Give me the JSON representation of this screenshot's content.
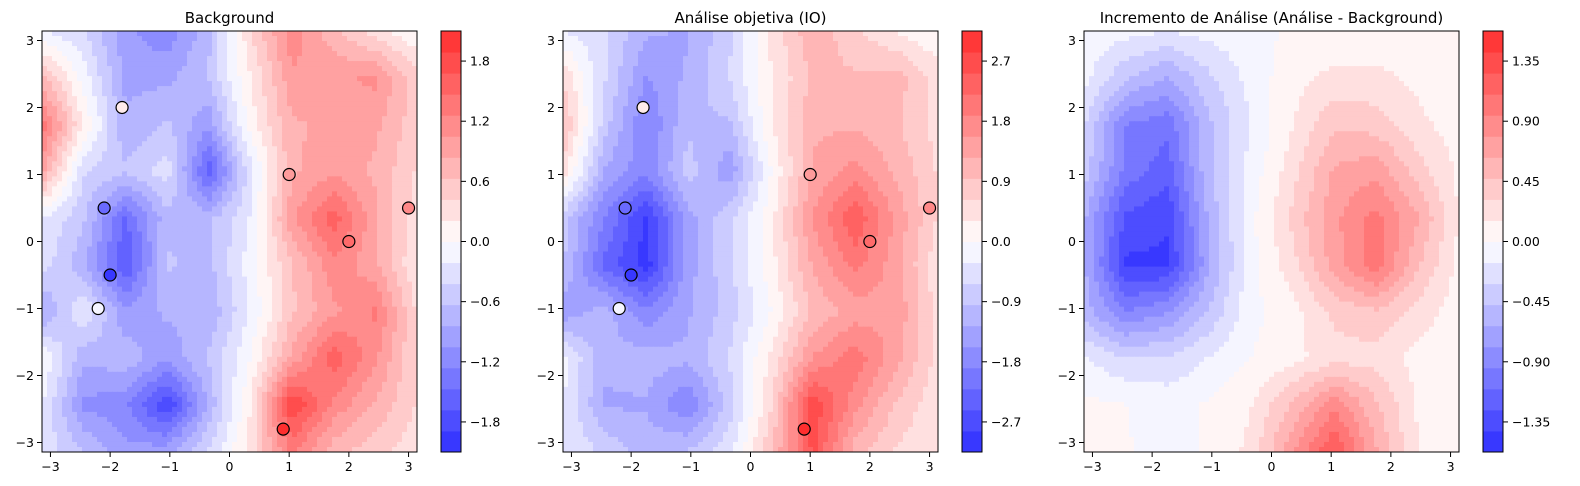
{
  "chart_data": [
    {
      "type": "heatmap",
      "title": "Background",
      "xlabel": "",
      "ylabel": "",
      "xlim": [
        -3.14159,
        3.14159
      ],
      "ylim": [
        -3.14159,
        3.14159
      ],
      "x_ticks": [
        -3,
        -2,
        -1,
        0,
        1,
        2,
        3
      ],
      "y_ticks": [
        -3,
        -2,
        -1,
        0,
        1,
        2,
        3
      ],
      "x_tick_labels": [
        "−3",
        "−2",
        "−1",
        "0",
        "1",
        "2",
        "3"
      ],
      "y_tick_labels": [
        "−3",
        "−2",
        "−1",
        "0",
        "1",
        "2",
        "3"
      ],
      "colormap": "bwr",
      "color_range": [
        -2.1,
        2.1
      ],
      "levels": 20,
      "colorbar_ticks": [
        -1.8,
        -1.2,
        -0.6,
        0.0,
        0.6,
        1.2,
        1.8
      ],
      "colorbar_tick_labels": [
        "−1.8",
        "−1.2",
        "−0.6",
        "0.0",
        "0.6",
        "1.2",
        "1.8"
      ],
      "grid": {
        "x": [
          -3.14,
          -2.44,
          -1.75,
          -1.05,
          -0.35,
          0.35,
          1.05,
          1.75,
          2.44,
          3.14
        ],
        "y": [
          3.14,
          2.44,
          1.75,
          1.05,
          0.35,
          -0.35,
          -1.05,
          -1.75,
          -2.44,
          -3.14
        ],
        "z": [
          [
            -0.2,
            -0.4,
            -1.0,
            -1.2,
            -0.7,
            0.4,
            1.2,
            0.7,
            0.3,
            0.0
          ],
          [
            0.7,
            -0.1,
            -0.9,
            -0.9,
            -0.6,
            0.2,
            1.0,
            1.0,
            1.1,
            0.5
          ],
          [
            1.4,
            0.2,
            -0.8,
            -0.6,
            -1.0,
            0.1,
            0.8,
            0.9,
            0.9,
            0.5
          ],
          [
            0.9,
            -0.4,
            -0.6,
            -0.3,
            -1.6,
            -0.3,
            0.8,
            1.0,
            0.8,
            0.4
          ],
          [
            -0.2,
            -0.6,
            -1.5,
            -0.7,
            -0.7,
            -0.2,
            1.0,
            1.6,
            0.9,
            0.3
          ],
          [
            -0.3,
            -0.8,
            -1.7,
            -0.6,
            -0.7,
            -0.1,
            0.6,
            1.2,
            0.9,
            0.2
          ],
          [
            -0.9,
            -0.2,
            -1.0,
            -0.8,
            -0.8,
            -0.2,
            0.6,
            1.0,
            1.3,
            0.4
          ],
          [
            0.0,
            -0.8,
            -0.7,
            -1.0,
            -0.6,
            0.0,
            0.9,
            1.6,
            1.1,
            0.4
          ],
          [
            -0.2,
            -1.1,
            -1.2,
            -1.9,
            -0.8,
            0.2,
            1.9,
            1.2,
            0.8,
            0.4
          ],
          [
            -0.3,
            -0.6,
            -1.0,
            -0.9,
            -0.4,
            0.3,
            1.3,
            0.7,
            0.5,
            0.3
          ]
        ]
      },
      "observations": [
        {
          "x": -1.8,
          "y": 2.0,
          "value": 0.2
        },
        {
          "x": 1.0,
          "y": 1.0,
          "value": 1.0
        },
        {
          "x": -2.1,
          "y": 0.5,
          "value": -1.5
        },
        {
          "x": 3.0,
          "y": 0.5,
          "value": 1.2
        },
        {
          "x": 2.0,
          "y": 0.0,
          "value": 1.5
        },
        {
          "x": -2.0,
          "y": -0.5,
          "value": -2.0
        },
        {
          "x": -2.2,
          "y": -1.0,
          "value": -0.1
        },
        {
          "x": 0.9,
          "y": -2.8,
          "value": 2.3
        }
      ]
    },
    {
      "type": "heatmap",
      "title": "Análise objetiva (IO)",
      "xlabel": "",
      "ylabel": "",
      "xlim": [
        -3.14159,
        3.14159
      ],
      "ylim": [
        -3.14159,
        3.14159
      ],
      "x_ticks": [
        -3,
        -2,
        -1,
        0,
        1,
        2,
        3
      ],
      "y_ticks": [
        -3,
        -2,
        -1,
        0,
        1,
        2,
        3
      ],
      "x_tick_labels": [
        "−3",
        "−2",
        "−1",
        "0",
        "1",
        "2",
        "3"
      ],
      "y_tick_labels": [
        "−3",
        "−2",
        "−1",
        "0",
        "1",
        "2",
        "3"
      ],
      "colormap": "bwr",
      "color_range": [
        -3.15,
        3.15
      ],
      "levels": 20,
      "colorbar_ticks": [
        -2.7,
        -1.8,
        -0.9,
        0.0,
        0.9,
        1.8,
        2.7
      ],
      "colorbar_tick_labels": [
        "−2.7",
        "−1.8",
        "−0.9",
        "0.0",
        "0.9",
        "1.8",
        "2.7"
      ],
      "grid": {
        "x": [
          -3.14,
          -2.44,
          -1.75,
          -1.05,
          -0.35,
          0.35,
          1.05,
          1.75,
          2.44,
          3.14
        ],
        "y": [
          3.14,
          2.44,
          1.75,
          1.05,
          0.35,
          -0.35,
          -1.05,
          -1.75,
          -2.44,
          -3.14
        ],
        "z": [
          [
            -0.3,
            -0.6,
            -1.2,
            -1.3,
            -0.7,
            0.4,
            1.2,
            0.7,
            0.3,
            0.0
          ],
          [
            0.6,
            -0.6,
            -1.6,
            -1.2,
            -0.6,
            0.3,
            1.0,
            1.0,
            1.1,
            0.5
          ],
          [
            1.0,
            -0.8,
            -1.9,
            -1.0,
            -1.0,
            0.3,
            1.2,
            1.2,
            1.0,
            0.5
          ],
          [
            0.5,
            -1.3,
            -1.8,
            -0.8,
            -1.5,
            0.0,
            1.3,
            1.7,
            1.2,
            0.6
          ],
          [
            -0.8,
            -1.9,
            -2.9,
            -1.4,
            -0.7,
            0.2,
            1.6,
            2.5,
            1.5,
            0.6
          ],
          [
            -0.9,
            -2.3,
            -3.0,
            -1.4,
            -0.7,
            0.2,
            1.3,
            2.0,
            1.4,
            0.4
          ],
          [
            -1.5,
            -1.1,
            -1.8,
            -1.3,
            -0.8,
            0.0,
            1.0,
            1.4,
            1.5,
            0.5
          ],
          [
            -0.2,
            -1.2,
            -1.1,
            -1.2,
            -0.6,
            0.4,
            1.6,
            2.1,
            1.4,
            0.5
          ],
          [
            -0.3,
            -1.3,
            -1.3,
            -1.9,
            -0.8,
            0.6,
            2.8,
            1.7,
            0.9,
            0.4
          ],
          [
            -0.3,
            -0.7,
            -1.1,
            -0.9,
            -0.4,
            0.9,
            2.6,
            1.1,
            0.6,
            0.3
          ]
        ]
      },
      "observations": [
        {
          "x": -1.8,
          "y": 2.0,
          "value": 0.2
        },
        {
          "x": 1.0,
          "y": 1.0,
          "value": 1.0
        },
        {
          "x": -2.1,
          "y": 0.5,
          "value": -1.5
        },
        {
          "x": 3.0,
          "y": 0.5,
          "value": 1.2
        },
        {
          "x": 2.0,
          "y": 0.0,
          "value": 1.5
        },
        {
          "x": -2.0,
          "y": -0.5,
          "value": -2.0
        },
        {
          "x": -2.2,
          "y": -1.0,
          "value": -0.1
        },
        {
          "x": 0.9,
          "y": -2.8,
          "value": 2.3
        }
      ]
    },
    {
      "type": "heatmap",
      "title": "Incremento de Análise (Análise - Background)",
      "xlabel": "",
      "ylabel": "",
      "xlim": [
        -3.14159,
        3.14159
      ],
      "ylim": [
        -3.14159,
        3.14159
      ],
      "x_ticks": [
        -3,
        -2,
        -1,
        0,
        1,
        2,
        3
      ],
      "y_ticks": [
        -3,
        -2,
        -1,
        0,
        1,
        2,
        3
      ],
      "x_tick_labels": [
        "−3",
        "−2",
        "−1",
        "0",
        "1",
        "2",
        "3"
      ],
      "y_tick_labels": [
        "−3",
        "−2",
        "−1",
        "0",
        "1",
        "2",
        "3"
      ],
      "colormap": "bwr",
      "color_range": [
        -1.575,
        1.575
      ],
      "levels": 20,
      "colorbar_ticks": [
        -1.35,
        -0.9,
        -0.45,
        0.0,
        0.45,
        0.9,
        1.35
      ],
      "colorbar_tick_labels": [
        "−1.35",
        "−0.90",
        "−0.45",
        "0.00",
        "0.45",
        "0.90",
        "1.35"
      ],
      "grid": {
        "x": [
          -3.14,
          -2.44,
          -1.75,
          -1.05,
          -0.35,
          0.35,
          1.05,
          1.75,
          2.44,
          3.14
        ],
        "y": [
          3.14,
          2.44,
          1.75,
          1.05,
          0.35,
          -0.35,
          -1.05,
          -1.75,
          -2.44,
          -3.14
        ],
        "z": [
          [
            -0.05,
            -0.1,
            -0.15,
            -0.1,
            -0.05,
            0.02,
            0.05,
            0.05,
            0.03,
            0.02
          ],
          [
            -0.1,
            -0.45,
            -0.65,
            -0.35,
            -0.1,
            0.1,
            0.2,
            0.2,
            0.12,
            0.05
          ],
          [
            -0.3,
            -0.95,
            -1.05,
            -0.5,
            -0.15,
            0.15,
            0.45,
            0.4,
            0.2,
            0.08
          ],
          [
            -0.4,
            -1.0,
            -1.2,
            -0.5,
            -0.1,
            0.25,
            0.65,
            0.75,
            0.4,
            0.12
          ],
          [
            -0.6,
            -1.3,
            -1.4,
            -0.6,
            -0.05,
            0.35,
            0.75,
            1.0,
            0.65,
            0.15
          ],
          [
            -0.6,
            -1.45,
            -1.45,
            -0.65,
            -0.05,
            0.25,
            0.7,
            1.05,
            0.5,
            0.1
          ],
          [
            -0.55,
            -0.95,
            -0.8,
            -0.45,
            -0.05,
            0.1,
            0.35,
            0.45,
            0.25,
            0.08
          ],
          [
            -0.15,
            -0.3,
            -0.3,
            -0.15,
            0.0,
            0.1,
            0.25,
            0.25,
            0.1,
            0.05
          ],
          [
            0.05,
            0.0,
            -0.05,
            0.02,
            0.15,
            0.5,
            0.9,
            0.5,
            0.15,
            0.05
          ],
          [
            0.05,
            0.02,
            -0.1,
            0.03,
            0.2,
            0.75,
            1.3,
            0.65,
            0.15,
            0.05
          ]
        ]
      }
    }
  ]
}
